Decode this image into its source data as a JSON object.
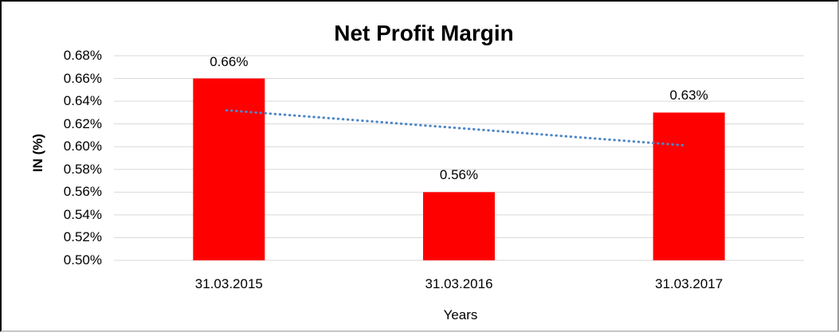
{
  "chart_data": {
    "type": "bar",
    "title": "Net Profit Margin",
    "xlabel": "Years",
    "ylabel": "IN (%)",
    "categories": [
      "31.03.2015",
      "31.03.2016",
      "31.03.2017"
    ],
    "values": [
      0.66,
      0.56,
      0.63
    ],
    "data_labels": [
      "0.66%",
      "0.56%",
      "0.63%"
    ],
    "ylim": [
      0.5,
      0.68
    ],
    "ytick_step": 0.02,
    "ytick_labels": [
      "0.68%",
      "0.66%",
      "0.64%",
      "0.62%",
      "0.60%",
      "0.58%",
      "0.56%",
      "0.54%",
      "0.52%",
      "0.50%"
    ],
    "grid": true,
    "legend": "none",
    "trendline": {
      "type": "linear",
      "style": "dotted",
      "start_value": 0.632,
      "end_value": 0.601
    },
    "colors": {
      "bar": "#ff0000",
      "gridline": "#d9d9d9",
      "trendline": "#4f86c6",
      "text": "#000000"
    }
  }
}
